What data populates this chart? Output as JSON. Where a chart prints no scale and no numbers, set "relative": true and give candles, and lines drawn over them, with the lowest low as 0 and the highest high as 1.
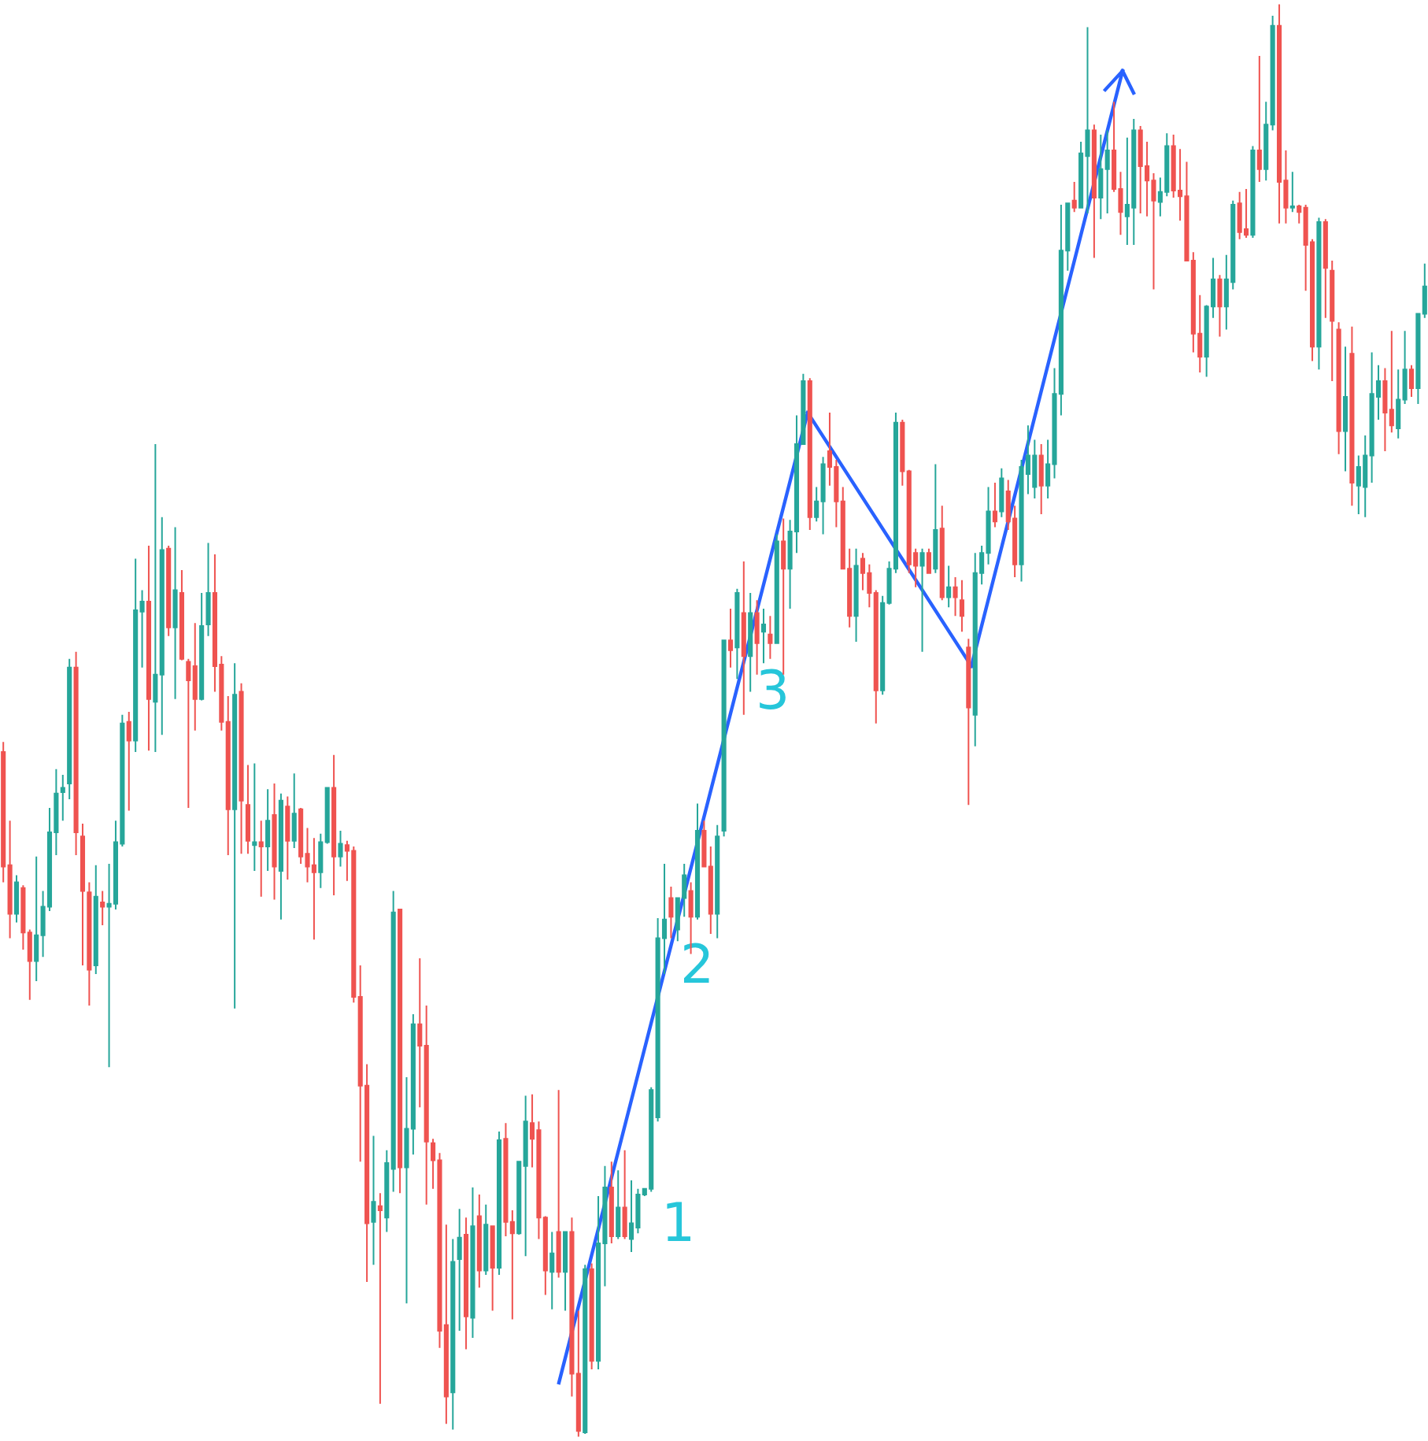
{
  "chart_data": {
    "type": "candlestick",
    "relative": true,
    "categories": [
      null,
      null,
      null,
      null,
      null,
      null,
      null,
      null,
      null,
      null,
      null,
      null,
      null,
      null,
      null,
      null,
      null,
      null,
      null,
      null,
      null,
      null,
      null,
      null,
      null,
      null,
      null,
      null,
      null,
      null,
      null,
      null,
      null,
      null,
      null,
      null,
      null,
      null,
      null,
      null,
      null,
      null,
      null,
      null,
      null,
      null,
      null,
      null,
      null,
      null,
      null,
      null,
      null,
      null,
      null,
      null,
      null,
      null,
      null,
      null,
      null,
      null,
      null,
      null,
      null,
      null,
      null,
      null,
      null,
      null,
      null,
      null,
      null,
      null,
      null,
      null,
      null,
      null,
      null,
      null,
      null,
      null,
      null,
      null,
      null,
      null,
      null,
      null,
      null,
      null,
      null,
      null,
      null,
      null,
      null,
      null,
      null,
      null,
      null,
      null,
      null,
      null,
      null,
      null,
      null,
      null,
      null,
      null,
      null,
      null,
      null,
      null,
      null,
      null,
      null,
      null,
      null,
      null,
      null,
      null,
      null,
      null,
      null,
      null,
      null,
      null,
      null,
      null,
      null,
      null,
      null,
      null,
      null,
      null,
      null,
      null,
      null,
      null,
      null,
      null,
      null,
      null,
      null,
      null,
      null,
      null,
      null,
      null,
      null,
      null,
      null,
      null,
      null,
      null,
      null,
      null,
      null,
      null,
      null,
      null,
      null,
      null,
      null,
      null,
      null,
      null,
      null,
      null,
      null,
      null,
      null,
      null,
      null,
      null,
      null,
      null,
      null,
      null,
      null,
      null,
      null,
      null,
      null,
      null,
      null,
      null,
      null,
      null,
      null,
      null,
      null,
      null,
      null,
      null,
      null,
      null,
      null,
      null,
      null,
      null,
      null,
      null,
      null,
      null,
      null,
      null,
      null,
      null,
      null,
      null,
      null,
      null,
      null,
      null,
      null,
      null
    ],
    "colors": [
      "#ef5350",
      "#ef5350",
      "#26a69a",
      "#ef5350",
      "#ef5350",
      "#26a69a",
      "#26a69a",
      "#26a69a",
      "#26a69a",
      "#26a69a",
      "#26a69a",
      "#ef5350",
      "#ef5350",
      "#ef5350",
      "#26a69a",
      "#ef5350",
      "#26a69a",
      "#26a69a",
      "#26a69a",
      "#ef5350",
      "#26a69a",
      "#26a69a",
      "#ef5350",
      "#26a69a",
      "#26a69a",
      "#ef5350",
      "#26a69a",
      "#ef5350",
      "#ef5350",
      "#ef5350",
      "#26a69a",
      "#26a69a",
      "#ef5350",
      "#ef5350",
      "#ef5350",
      "#26a69a",
      "#ef5350",
      "#ef5350",
      "#26a69a",
      "#ef5350",
      "#26a69a",
      "#ef5350",
      "#26a69a",
      "#ef5350",
      "#26a69a",
      "#ef5350",
      "#ef5350",
      "#ef5350",
      "#26a69a",
      "#26a69a",
      "#ef5350",
      "#26a69a",
      "#ef5350",
      "#ef5350",
      "#ef5350",
      "#ef5350",
      "#26a69a",
      "#ef5350",
      "#26a69a",
      "#26a69a",
      "#ef5350",
      "#26a69a",
      "#26a69a",
      "#ef5350",
      "#ef5350",
      "#ef5350",
      "#ef5350",
      "#ef5350",
      "#26a69a",
      "#26a69a",
      "#ef5350",
      "#26a69a",
      "#ef5350",
      "#26a69a",
      "#ef5350",
      "#26a69a",
      "#ef5350",
      "#ef5350",
      "#26a69a",
      "#26a69a",
      "#ef5350",
      "#ef5350",
      "#ef5350",
      "#26a69a",
      "#ef5350",
      "#26a69a",
      "#ef5350",
      "#ef5350",
      "#26a69a",
      "#ef5350",
      "#26a69a",
      "#26a69a",
      "#ef5350",
      "#26a69a",
      "#ef5350",
      "#26a69a",
      "#26a69a",
      "#26a69a",
      "#26a69a",
      "#26a69a",
      "#26a69a",
      "#ef5350",
      "#26a69a",
      "#26a69a",
      "#ef5350",
      "#26a69a",
      "#ef5350",
      "#ef5350",
      "#26a69a",
      "#26a69a",
      "#ef5350",
      "#26a69a",
      "#ef5350",
      "#26a69a",
      "#ef5350",
      "#26a69a",
      "#ef5350",
      "#26a69a",
      "#ef5350",
      "#26a69a",
      "#26a69a",
      "#26a69a",
      "#ef5350",
      "#26a69a",
      "#26a69a",
      "#ef5350",
      "#ef5350",
      "#ef5350",
      "#ef5350",
      "#26a69a",
      "#ef5350",
      "#ef5350",
      "#ef5350",
      "#26a69a",
      "#26a69a",
      "#26a69a",
      "#ef5350",
      "#ef5350",
      "#ef5350",
      "#26a69a",
      "#ef5350",
      "#26a69a",
      "#ef5350",
      "#26a69a",
      "#ef5350",
      "#ef5350",
      "#ef5350",
      "#26a69a",
      "#26a69a",
      "#26a69a",
      "#ef5350",
      "#26a69a",
      "#ef5350",
      "#ef5350",
      "#26a69a",
      "#26a69a",
      "#26a69a",
      "#ef5350",
      "#26a69a",
      "#26a69a",
      "#26a69a",
      "#26a69a",
      "#ef5350",
      "#26a69a",
      "#26a69a",
      "#ef5350",
      "#26a69a",
      "#26a69a",
      "#ef5350",
      "#ef5350",
      "#26a69a",
      "#26a69a",
      "#ef5350",
      "#ef5350",
      "#ef5350",
      "#26a69a",
      "#26a69a",
      "#ef5350",
      "#ef5350",
      "#ef5350",
      "#ef5350",
      "#ef5350",
      "#26a69a",
      "#26a69a",
      "#ef5350",
      "#26a69a",
      "#26a69a",
      "#ef5350",
      "#ef5350",
      "#26a69a",
      "#ef5350",
      "#26a69a",
      "#26a69a",
      "#ef5350",
      "#ef5350",
      "#26a69a",
      "#ef5350",
      "#ef5350",
      "#ef5350",
      "#26a69a",
      "#ef5350",
      "#ef5350",
      "#ef5350",
      "#26a69a",
      "#ef5350",
      "#26a69a",
      "#26a69a",
      "#26a69a",
      "#26a69a",
      "#ef5350",
      "#ef5350",
      "#26a69a",
      "#26a69a",
      "#ef5350",
      "#26a69a",
      "#26a69a"
    ],
    "ohlc": [
      [
        0.478,
        0.485,
        0.387,
        0.398
      ],
      [
        0.399,
        0.43,
        0.348,
        0.365
      ],
      [
        0.365,
        0.392,
        0.359,
        0.387
      ],
      [
        0.383,
        0.385,
        0.34,
        0.352
      ],
      [
        0.352,
        0.354,
        0.305,
        0.332
      ],
      [
        0.332,
        0.405,
        0.318,
        0.35
      ],
      [
        0.35,
        0.381,
        0.335,
        0.37
      ],
      [
        0.37,
        0.439,
        0.367,
        0.422
      ],
      [
        0.422,
        0.466,
        0.406,
        0.449
      ],
      [
        0.45,
        0.462,
        0.43,
        0.453
      ],
      [
        0.456,
        0.543,
        0.445,
        0.537
      ],
      [
        0.537,
        0.548,
        0.406,
        0.422
      ],
      [
        0.419,
        0.428,
        0.329,
        0.381
      ],
      [
        0.38,
        0.387,
        0.301,
        0.326
      ],
      [
        0.329,
        0.399,
        0.323,
        0.377
      ],
      [
        0.373,
        0.381,
        0.357,
        0.37
      ],
      [
        0.37,
        0.4,
        0.258,
        0.372
      ],
      [
        0.372,
        0.43,
        0.368,
        0.415
      ],
      [
        0.414,
        0.504,
        0.412,
        0.498
      ],
      [
        0.499,
        0.506,
        0.437,
        0.486
      ],
      [
        0.486,
        0.613,
        0.478,
        0.577
      ],
      [
        0.576,
        0.591,
        0.537,
        0.583
      ],
      [
        0.583,
        0.622,
        0.479,
        0.515
      ],
      [
        0.513,
        0.693,
        0.478,
        0.532
      ],
      [
        0.532,
        0.642,
        0.49,
        0.619
      ],
      [
        0.62,
        0.622,
        0.559,
        0.565
      ],
      [
        0.565,
        0.635,
        0.515,
        0.591
      ],
      [
        0.589,
        0.605,
        0.542,
        0.543
      ],
      [
        0.541,
        0.543,
        0.439,
        0.528
      ],
      [
        0.538,
        0.568,
        0.493,
        0.515
      ],
      [
        0.515,
        0.589,
        0.514,
        0.566
      ],
      [
        0.567,
        0.624,
        0.559,
        0.589
      ],
      [
        0.589,
        0.616,
        0.52,
        0.538
      ],
      [
        0.539,
        0.545,
        0.493,
        0.499
      ],
      [
        0.499,
        0.517,
        0.406,
        0.438
      ],
      [
        0.438,
        0.54,
        0.299,
        0.518
      ],
      [
        0.52,
        0.526,
        0.407,
        0.444
      ],
      [
        0.441,
        0.469,
        0.407,
        0.416
      ],
      [
        0.413,
        0.47,
        0.395,
        0.415
      ],
      [
        0.415,
        0.43,
        0.377,
        0.412
      ],
      [
        0.412,
        0.452,
        0.395,
        0.43
      ],
      [
        0.434,
        0.456,
        0.375,
        0.398
      ],
      [
        0.395,
        0.449,
        0.361,
        0.444
      ],
      [
        0.44,
        0.447,
        0.389,
        0.416
      ],
      [
        0.416,
        0.463,
        0.411,
        0.435
      ],
      [
        0.438,
        0.439,
        0.4,
        0.405
      ],
      [
        0.407,
        0.425,
        0.387,
        0.398
      ],
      [
        0.399,
        0.418,
        0.347,
        0.394
      ],
      [
        0.394,
        0.421,
        0.383,
        0.415
      ],
      [
        0.415,
        0.453,
        0.414,
        0.453
      ],
      [
        0.453,
        0.476,
        0.378,
        0.405
      ],
      [
        0.405,
        0.423,
        0.398,
        0.414
      ],
      [
        0.413,
        0.416,
        0.388,
        0.409
      ],
      [
        0.409,
        0.412,
        0.303,
        0.307
      ],
      [
        0.307,
        0.329,
        0.192,
        0.245
      ],
      [
        0.245,
        0.26,
        0.108,
        0.149
      ],
      [
        0.15,
        0.21,
        0.12,
        0.164
      ],
      [
        0.161,
        0.17,
        0.023,
        0.158
      ],
      [
        0.153,
        0.2,
        0.143,
        0.191
      ],
      [
        0.187,
        0.381,
        0.171,
        0.366
      ],
      [
        0.368,
        0.368,
        0.17,
        0.188
      ],
      [
        0.188,
        0.251,
        0.093,
        0.215
      ],
      [
        0.215,
        0.295,
        0.197,
        0.288
      ],
      [
        0.288,
        0.334,
        0.23,
        0.273
      ],
      [
        0.273,
        0.301,
        0.162,
        0.206
      ],
      [
        0.205,
        0.208,
        0.173,
        0.193
      ],
      [
        0.193,
        0.198,
        0.062,
        0.074
      ],
      [
        0.078,
        0.148,
        0.009,
        0.028
      ],
      [
        0.031,
        0.138,
        0.005,
        0.122
      ],
      [
        0.124,
        0.159,
        0.074,
        0.139
      ],
      [
        0.141,
        0.153,
        0.061,
        0.084
      ],
      [
        0.083,
        0.174,
        0.069,
        0.147
      ],
      [
        0.154,
        0.169,
        0.104,
        0.116
      ],
      [
        0.116,
        0.162,
        0.113,
        0.148
      ],
      [
        0.147,
        0.147,
        0.088,
        0.118
      ],
      [
        0.118,
        0.213,
        0.113,
        0.207
      ],
      [
        0.208,
        0.219,
        0.14,
        0.15
      ],
      [
        0.15,
        0.158,
        0.082,
        0.142
      ],
      [
        0.142,
        0.192,
        0.141,
        0.192
      ],
      [
        0.189,
        0.238,
        0.126,
        0.22
      ],
      [
        0.219,
        0.239,
        0.188,
        0.208
      ],
      [
        0.214,
        0.22,
        0.138,
        0.153
      ],
      [
        0.153,
        0.154,
        0.099,
        0.116
      ],
      [
        0.115,
        0.143,
        0.089,
        0.128
      ],
      [
        0.143,
        0.242,
        0.111,
        0.115
      ],
      [
        0.115,
        0.143,
        0.088,
        0.143
      ],
      [
        0.143,
        0.153,
        0.028,
        0.044
      ],
      [
        0.044,
        0.088,
        0,
        0.004
      ],
      [
        0.003,
        0.12,
        0.002,
        0.117
      ],
      [
        0.117,
        0.121,
        0.047,
        0.053
      ],
      [
        0.053,
        0.168,
        0.047,
        0.135
      ],
      [
        0.135,
        0.189,
        0.105,
        0.174
      ],
      [
        0.174,
        0.192,
        0.135,
        0.14
      ],
      [
        0.14,
        0.186,
        0.138,
        0.16
      ],
      [
        0.16,
        0.2,
        0.138,
        0.14
      ],
      [
        0.138,
        0.179,
        0.129,
        0.149
      ],
      [
        0.146,
        0.173,
        0.142,
        0.169
      ],
      [
        0.169,
        0.173,
        0.168,
        0.173
      ],
      [
        0.173,
        0.244,
        0.171,
        0.242
      ],
      [
        0.223,
        0.362,
        0.22,
        0.348
      ],
      [
        0.348,
        0.4,
        0.323,
        0.361
      ],
      [
        0.376,
        0.384,
        0.348,
        0.363
      ],
      [
        0.354,
        0.376,
        0.346,
        0.376
      ],
      [
        0.376,
        0.4,
        0.363,
        0.392
      ],
      [
        0.381,
        0.387,
        0.337,
        0.363
      ],
      [
        0.363,
        0.442,
        0.361,
        0.423
      ],
      [
        0.423,
        0.43,
        0.398,
        0.398
      ],
      [
        0.398,
        0.412,
        0.351,
        0.365
      ],
      [
        0.365,
        0.427,
        0.348,
        0.419
      ],
      [
        0.423,
        0.556,
        0.419,
        0.556
      ],
      [
        0.556,
        0.578,
        0.537,
        0.549
      ],
      [
        0.551,
        0.592,
        0.529,
        0.589
      ],
      [
        0.575,
        0.611,
        0.504,
        0.545
      ],
      [
        0.545,
        0.589,
        0.52,
        0.575
      ],
      [
        0.575,
        0.584,
        0.532,
        0.554
      ],
      [
        0.562,
        0.578,
        0.54,
        0.567
      ],
      [
        0.56,
        0.573,
        0.543,
        0.554
      ],
      [
        0.554,
        0.63,
        0.554,
        0.625
      ],
      [
        0.625,
        0.641,
        0.532,
        0.606
      ],
      [
        0.606,
        0.64,
        0.578,
        0.632
      ],
      [
        0.632,
        0.713,
        0.617,
        0.693
      ],
      [
        0.693,
        0.742,
        0.693,
        0.737
      ],
      [
        0.737,
        0.739,
        0.633,
        0.642
      ],
      [
        0.642,
        0.663,
        0.639,
        0.653
      ],
      [
        0.653,
        0.684,
        0.63,
        0.679
      ],
      [
        0.688,
        0.715,
        0.664,
        0.677
      ],
      [
        0.677,
        0.682,
        0.635,
        0.653
      ],
      [
        0.653,
        0.663,
        0.606,
        0.606
      ],
      [
        0.606,
        0.62,
        0.565,
        0.573
      ],
      [
        0.573,
        0.62,
        0.555,
        0.608
      ],
      [
        0.613,
        0.617,
        0.591,
        0.603
      ],
      [
        0.603,
        0.609,
        0.579,
        0.589
      ],
      [
        0.589,
        0.591,
        0.498,
        0.521
      ],
      [
        0.521,
        0.587,
        0.518,
        0.582
      ],
      [
        0.582,
        0.611,
        0.581,
        0.606
      ],
      [
        0.606,
        0.715,
        0.603,
        0.708
      ],
      [
        0.708,
        0.71,
        0.664,
        0.674
      ],
      [
        0.674,
        0.675,
        0.603,
        0.609
      ],
      [
        0.617,
        0.62,
        0.593,
        0.608
      ],
      [
        0.608,
        0.62,
        0.548,
        0.617
      ],
      [
        0.617,
        0.62,
        0.603,
        0.603
      ],
      [
        0.606,
        0.679,
        0.603,
        0.633
      ],
      [
        0.634,
        0.65,
        0.584,
        0.586
      ],
      [
        0.586,
        0.608,
        0.579,
        0.593
      ],
      [
        0.593,
        0.6,
        0.573,
        0.586
      ],
      [
        0.584,
        0.598,
        0.562,
        0.573
      ],
      [
        0.551,
        0.557,
        0.441,
        0.509
      ],
      [
        0.504,
        0.617,
        0.482,
        0.603
      ],
      [
        0.603,
        0.622,
        0.595,
        0.617
      ],
      [
        0.617,
        0.663,
        0.609,
        0.646
      ],
      [
        0.646,
        0.666,
        0.635,
        0.639
      ],
      [
        0.646,
        0.676,
        0.642,
        0.669
      ],
      [
        0.66,
        0.668,
        0.633,
        0.639
      ],
      [
        0.641,
        0.65,
        0.6,
        0.609
      ],
      [
        0.609,
        0.682,
        0.597,
        0.677
      ],
      [
        0.672,
        0.706,
        0.658,
        0.685
      ],
      [
        0.663,
        0.696,
        0.655,
        0.685
      ],
      [
        0.685,
        0.693,
        0.644,
        0.664
      ],
      [
        0.664,
        0.696,
        0.655,
        0.679
      ],
      [
        0.679,
        0.746,
        0.669,
        0.728
      ],
      [
        0.728,
        0.86,
        0.713,
        0.828
      ],
      [
        0.828,
        0.861,
        0.814,
        0.861
      ],
      [
        0.863,
        0.876,
        0.855,
        0.858
      ],
      [
        0.858,
        0.904,
        0.858,
        0.896
      ],
      [
        0.894,
        0.984,
        0.854,
        0.912
      ],
      [
        0.912,
        0.916,
        0.823,
        0.865
      ],
      [
        0.865,
        0.909,
        0.85,
        0.885
      ],
      [
        0.885,
        0.912,
        0.854,
        0.898
      ],
      [
        0.898,
        0.932,
        0.869,
        0.871
      ],
      [
        0.871,
        0.883,
        0.839,
        0.855
      ],
      [
        0.852,
        0.907,
        0.832,
        0.86
      ],
      [
        0.858,
        0.92,
        0.832,
        0.912
      ],
      [
        0.912,
        0.915,
        0.854,
        0.887
      ],
      [
        0.887,
        0.904,
        0.852,
        0.877
      ],
      [
        0.877,
        0.882,
        0.801,
        0.863
      ],
      [
        0.862,
        0.879,
        0.852,
        0.869
      ],
      [
        0.869,
        0.91,
        0.866,
        0.901
      ],
      [
        0.901,
        0.909,
        0.865,
        0.87
      ],
      [
        0.87,
        0.899,
        0.849,
        0.866
      ],
      [
        0.866,
        0.89,
        0.821,
        0.821
      ],
      [
        0.821,
        0.827,
        0.757,
        0.77
      ],
      [
        0.77,
        0.797,
        0.743,
        0.754
      ],
      [
        0.754,
        0.79,
        0.74,
        0.789
      ],
      [
        0.789,
        0.823,
        0.781,
        0.808
      ],
      [
        0.808,
        0.811,
        0.768,
        0.789
      ],
      [
        0.789,
        0.825,
        0.773,
        0.808
      ],
      [
        0.806,
        0.863,
        0.801,
        0.86
      ],
      [
        0.861,
        0.869,
        0.836,
        0.841
      ],
      [
        0.843,
        0.871,
        0.837,
        0.839
      ],
      [
        0.839,
        0.901,
        0.837,
        0.898
      ],
      [
        0.898,
        0.964,
        0.876,
        0.885
      ],
      [
        0.885,
        0.932,
        0.877,
        0.916
      ],
      [
        0.916,
        0.992,
        0.912,
        0.985
      ],
      [
        0.985,
        1.0,
        0.847,
        0.876
      ],
      [
        0.877,
        0.898,
        0.847,
        0.858
      ],
      [
        0.858,
        0.883,
        0.855,
        0.859
      ],
      [
        0.859,
        0.86,
        0.847,
        0.855
      ],
      [
        0.858,
        0.86,
        0.8,
        0.832
      ],
      [
        0.834,
        0.836,
        0.751,
        0.761
      ],
      [
        0.761,
        0.851,
        0.745,
        0.848
      ],
      [
        0.848,
        0.85,
        0.781,
        0.816
      ],
      [
        0.814,
        0.821,
        0.737,
        0.779
      ],
      [
        0.773,
        0.778,
        0.686,
        0.702
      ],
      [
        0.702,
        0.761,
        0.674,
        0.726
      ],
      [
        0.756,
        0.775,
        0.65,
        0.666
      ],
      [
        0.664,
        0.685,
        0.644,
        0.677
      ],
      [
        0.663,
        0.699,
        0.642,
        0.685
      ],
      [
        0.685,
        0.757,
        0.666,
        0.728
      ],
      [
        0.726,
        0.748,
        0.71,
        0.737
      ],
      [
        0.737,
        0.746,
        0.688,
        0.715
      ],
      [
        0.717,
        0.772,
        0.701,
        0.706
      ],
      [
        0.704,
        0.745,
        0.697,
        0.724
      ],
      [
        0.724,
        0.772,
        0.721,
        0.745
      ],
      [
        0.745,
        0.748,
        0.726,
        0.732
      ],
      [
        0.732,
        0.784,
        0.721,
        0.784
      ],
      [
        0.784,
        0.819,
        0.781,
        0.803
      ]
    ],
    "annotations": [
      "1",
      "2",
      "3"
    ]
  }
}
